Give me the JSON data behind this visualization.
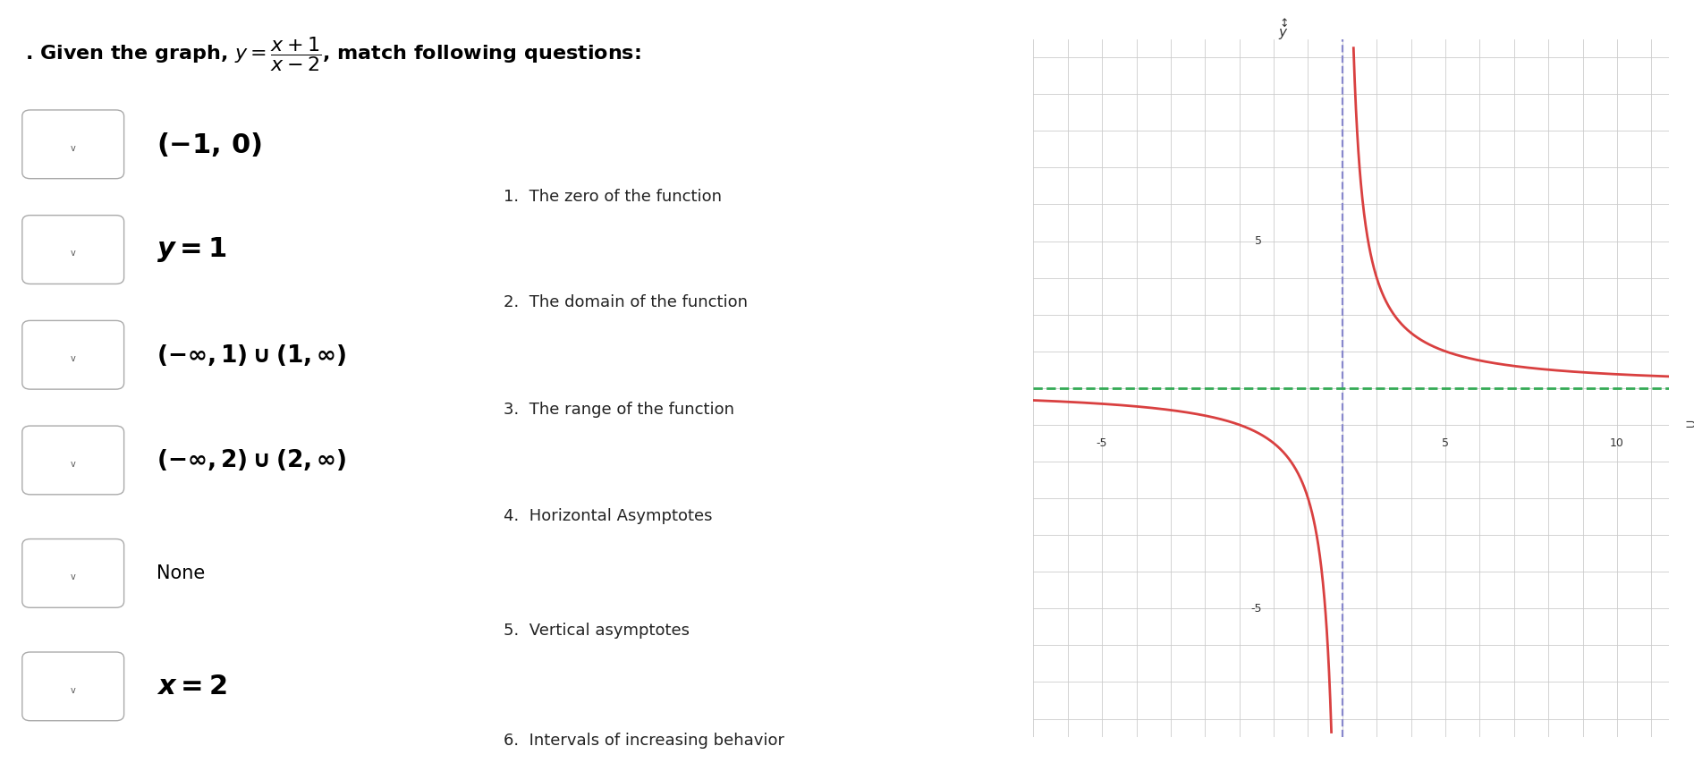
{
  "bg_color": "#ffffff",
  "title_normal": ". Given the graph, ",
  "title_math": "y = \\frac{x+1}{x-2}",
  "title_suffix": ", match following questions:",
  "left_labels": [
    "(-1,\\,0)",
    "y=1",
    "(-\\infty,1)\\cup(1,\\infty)",
    "(-\\infty,2)\\cup(2,\\infty)",
    "None",
    "x=2"
  ],
  "left_is_math": [
    true,
    true,
    true,
    true,
    false,
    true
  ],
  "right_labels": [
    "The zero of the function",
    "The domain of the function",
    "The range of the function",
    "Horizontal Asymptotes",
    "Vertical asymptotes",
    "Intervals of increasing behavior"
  ],
  "graph_xlim": [
    -7,
    11.5
  ],
  "graph_ylim": [
    -8.5,
    10.5
  ],
  "graph_xtick_labels": [
    -5,
    5,
    10
  ],
  "graph_ytick_labels": [
    -5,
    5
  ],
  "curve_color": "#d94040",
  "asymptote_v_color": "#8888cc",
  "asymptote_h_color": "#33aa55",
  "grid_color": "#cccccc",
  "axis_color": "#333333",
  "axis_lw": 1.8
}
